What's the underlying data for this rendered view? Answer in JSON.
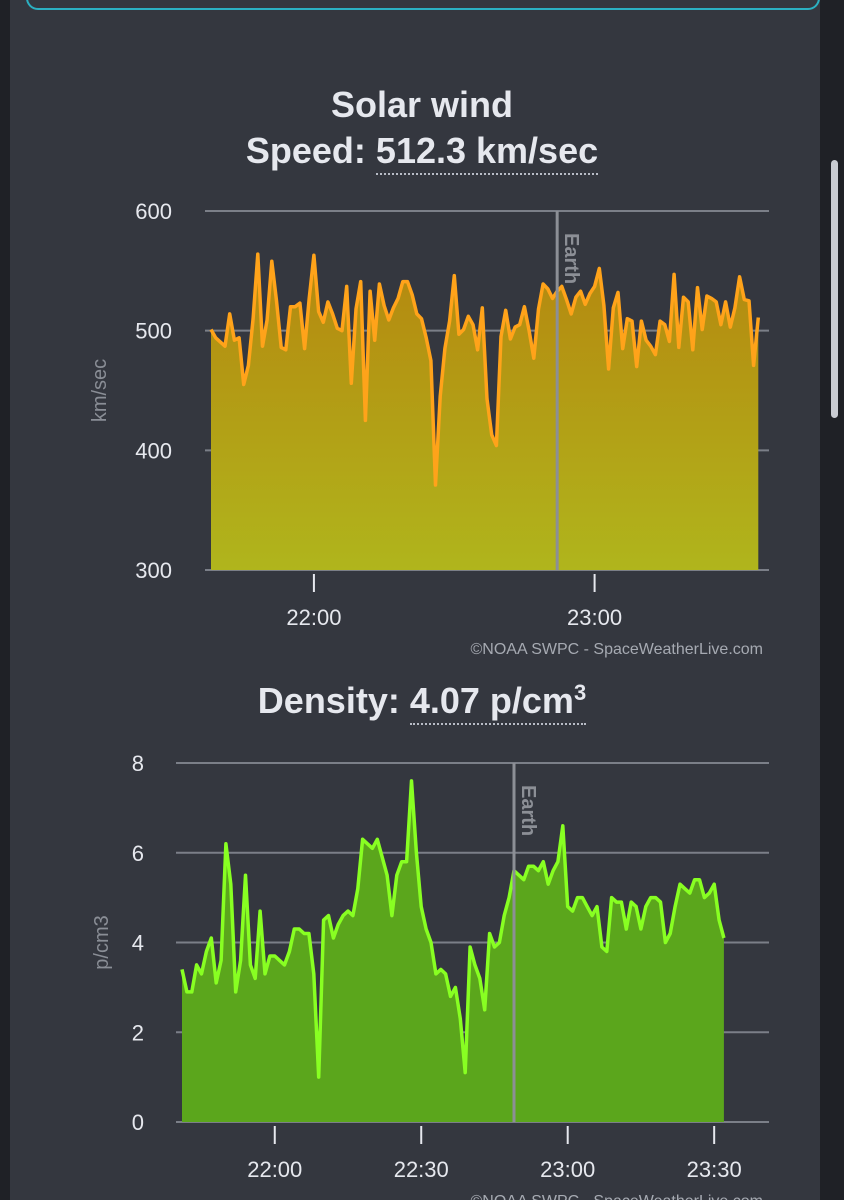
{
  "speed_chart": {
    "title_line1": "Solar wind",
    "value_label": "Speed:",
    "value": "512.3 km/sec",
    "credit": "©NOAA SWPC - SpaceWeatherLive.com",
    "earth_label": "Earth",
    "line_color": "#ffa31a",
    "fill_top": "#b5870f",
    "fill_bottom": "#b0b51c"
  },
  "density_chart": {
    "value_label": "Density:",
    "value": "4.07 p/cm",
    "value_sup": "3",
    "credit": "©NOAA SWPC - SpaceWeatherLive.com",
    "earth_label": "Earth",
    "line_color": "#88ff22",
    "fill_color": "#5ba61c"
  },
  "chart_data": [
    {
      "type": "area",
      "ylabel": "km/sec",
      "ylim": [
        300,
        600
      ],
      "yticks": [
        300,
        400,
        500,
        600
      ],
      "xticks": [
        {
          "label": "22:00",
          "t": 0
        },
        {
          "label": "23:00",
          "t": 60
        }
      ],
      "xlim": [
        -22,
        96
      ],
      "earth_marker_t": 52,
      "series": [
        {
          "values": [
            [
              -22,
              501
            ],
            [
              -21,
              494
            ],
            [
              -19,
              487
            ],
            [
              -18,
              514
            ],
            [
              -17,
              492
            ],
            [
              -16,
              494
            ],
            [
              -15,
              455
            ],
            [
              -14,
              471
            ],
            [
              -13,
              510
            ],
            [
              -12,
              564
            ],
            [
              -11,
              487
            ],
            [
              -10,
              509
            ],
            [
              -9,
              558
            ],
            [
              -8,
              525
            ],
            [
              -7,
              486
            ],
            [
              -6,
              484
            ],
            [
              -5,
              520
            ],
            [
              -4,
              520
            ],
            [
              -3,
              523
            ],
            [
              -2,
              485
            ],
            [
              -1,
              527
            ],
            [
              0,
              563
            ],
            [
              1,
              516
            ],
            [
              2,
              507
            ],
            [
              3,
              524
            ],
            [
              4,
              514
            ],
            [
              5,
              502
            ],
            [
              6,
              500
            ],
            [
              7,
              537
            ],
            [
              8,
              456
            ],
            [
              9,
              518
            ],
            [
              10,
              541
            ],
            [
              11,
              425
            ],
            [
              12,
              533
            ],
            [
              13,
              492
            ],
            [
              14,
              539
            ],
            [
              15,
              521
            ],
            [
              16,
              509
            ],
            [
              17,
              519
            ],
            [
              18,
              527
            ],
            [
              19,
              541
            ],
            [
              20,
              541
            ],
            [
              21,
              530
            ],
            [
              22,
              514
            ],
            [
              23,
              510
            ],
            [
              24,
              494
            ],
            [
              25,
              475
            ],
            [
              26,
              371
            ],
            [
              27,
              445
            ],
            [
              28,
              485
            ],
            [
              29,
              508
            ],
            [
              30,
              546
            ],
            [
              31,
              497
            ],
            [
              32,
              501
            ],
            [
              33,
              512
            ],
            [
              34,
              505
            ],
            [
              35,
              484
            ],
            [
              36,
              519
            ],
            [
              37,
              443
            ],
            [
              38,
              413
            ],
            [
              39,
              404
            ],
            [
              40,
              495
            ],
            [
              41,
              517
            ],
            [
              42,
              493
            ],
            [
              43,
              503
            ],
            [
              44,
              505
            ],
            [
              45,
              520
            ],
            [
              46,
              500
            ],
            [
              47,
              477
            ],
            [
              48,
              518
            ],
            [
              49,
              539
            ],
            [
              50,
              535
            ],
            [
              51,
              527
            ],
            [
              52,
              533
            ],
            [
              53,
              537
            ],
            [
              54,
              526
            ],
            [
              55,
              514
            ],
            [
              56,
              528
            ],
            [
              57,
              533
            ],
            [
              58,
              522
            ],
            [
              59,
              531
            ],
            [
              60,
              537
            ],
            [
              61,
              552
            ],
            [
              62,
              521
            ],
            [
              63,
              468
            ],
            [
              64,
              519
            ],
            [
              65,
              532
            ],
            [
              66,
              485
            ],
            [
              67,
              510
            ],
            [
              68,
              508
            ],
            [
              69,
              470
            ],
            [
              70,
              508
            ],
            [
              71,
              492
            ],
            [
              72,
              487
            ],
            [
              73,
              480
            ],
            [
              74,
              508
            ],
            [
              75,
              505
            ],
            [
              76,
              491
            ],
            [
              77,
              547
            ],
            [
              78,
              486
            ],
            [
              79,
              528
            ],
            [
              80,
              524
            ],
            [
              81,
              484
            ],
            [
              82,
              536
            ],
            [
              83,
              501
            ],
            [
              84,
              529
            ],
            [
              85,
              527
            ],
            [
              86,
              524
            ],
            [
              87,
              505
            ],
            [
              88,
              524
            ],
            [
              89,
              503
            ],
            [
              90,
              519
            ],
            [
              91,
              545
            ],
            [
              92,
              526
            ],
            [
              93,
              525
            ],
            [
              94,
              471
            ],
            [
              95,
              511
            ]
          ]
        }
      ]
    },
    {
      "type": "area",
      "ylabel": "p/cm3",
      "ylim": [
        0,
        8
      ],
      "yticks": [
        0,
        2,
        4,
        6,
        8
      ],
      "xticks": [
        {
          "label": "22:00",
          "t": 0
        },
        {
          "label": "22:30",
          "t": 30
        },
        {
          "label": "23:00",
          "t": 60
        },
        {
          "label": "23:30",
          "t": 90
        }
      ],
      "xlim": [
        -19,
        100
      ],
      "earth_marker_t": 49,
      "series": [
        {
          "values": [
            [
              -19,
              3.4
            ],
            [
              -18,
              2.9
            ],
            [
              -17,
              2.9
            ],
            [
              -16,
              3.5
            ],
            [
              -15,
              3.3
            ],
            [
              -14,
              3.8
            ],
            [
              -13,
              4.1
            ],
            [
              -12,
              3.1
            ],
            [
              -11,
              3.6
            ],
            [
              -10,
              6.2
            ],
            [
              -9,
              5.3
            ],
            [
              -8,
              2.9
            ],
            [
              -7,
              3.6
            ],
            [
              -6,
              5.5
            ],
            [
              -5,
              3.5
            ],
            [
              -4,
              3.2
            ],
            [
              -3,
              4.7
            ],
            [
              -2,
              3.3
            ],
            [
              -1,
              3.7
            ],
            [
              0,
              3.7
            ],
            [
              1,
              3.6
            ],
            [
              2,
              3.5
            ],
            [
              3,
              3.8
            ],
            [
              4,
              4.3
            ],
            [
              5,
              4.3
            ],
            [
              6,
              4.2
            ],
            [
              7,
              4.2
            ],
            [
              8,
              3.3
            ],
            [
              9,
              1.0
            ],
            [
              10,
              4.5
            ],
            [
              11,
              4.6
            ],
            [
              12,
              4.1
            ],
            [
              13,
              4.4
            ],
            [
              14,
              4.6
            ],
            [
              15,
              4.7
            ],
            [
              16,
              4.6
            ],
            [
              17,
              5.2
            ],
            [
              18,
              6.3
            ],
            [
              19,
              6.2
            ],
            [
              20,
              6.1
            ],
            [
              21,
              6.3
            ],
            [
              22,
              5.9
            ],
            [
              23,
              5.5
            ],
            [
              24,
              4.6
            ],
            [
              25,
              5.5
            ],
            [
              26,
              5.8
            ],
            [
              27,
              5.8
            ],
            [
              28,
              7.6
            ],
            [
              29,
              6.0
            ],
            [
              30,
              4.8
            ],
            [
              31,
              4.3
            ],
            [
              32,
              4.0
            ],
            [
              33,
              3.3
            ],
            [
              34,
              3.4
            ],
            [
              35,
              3.3
            ],
            [
              36,
              2.8
            ],
            [
              37,
              3.0
            ],
            [
              38,
              2.3
            ],
            [
              39,
              1.1
            ],
            [
              40,
              3.9
            ],
            [
              41,
              3.5
            ],
            [
              42,
              3.2
            ],
            [
              43,
              2.5
            ],
            [
              44,
              4.2
            ],
            [
              45,
              3.9
            ],
            [
              46,
              4.0
            ],
            [
              47,
              4.6
            ],
            [
              48,
              5.0
            ],
            [
              49,
              5.6
            ],
            [
              50,
              5.5
            ],
            [
              51,
              5.4
            ],
            [
              52,
              5.7
            ],
            [
              53,
              5.7
            ],
            [
              54,
              5.6
            ],
            [
              55,
              5.8
            ],
            [
              56,
              5.3
            ],
            [
              57,
              5.6
            ],
            [
              58,
              5.8
            ],
            [
              59,
              6.6
            ],
            [
              60,
              4.8
            ],
            [
              61,
              4.7
            ],
            [
              62,
              5.0
            ],
            [
              63,
              5.0
            ],
            [
              64,
              4.8
            ],
            [
              65,
              4.6
            ],
            [
              66,
              4.8
            ],
            [
              67,
              3.9
            ],
            [
              68,
              3.8
            ],
            [
              69,
              5.0
            ],
            [
              70,
              4.9
            ],
            [
              71,
              4.9
            ],
            [
              72,
              4.3
            ],
            [
              73,
              4.9
            ],
            [
              74,
              4.8
            ],
            [
              75,
              4.3
            ],
            [
              76,
              4.8
            ],
            [
              77,
              5.0
            ],
            [
              78,
              5.0
            ],
            [
              79,
              4.9
            ],
            [
              80,
              4.0
            ],
            [
              81,
              4.2
            ],
            [
              82,
              4.8
            ],
            [
              83,
              5.3
            ],
            [
              84,
              5.2
            ],
            [
              85,
              5.1
            ],
            [
              86,
              5.4
            ],
            [
              87,
              5.4
            ],
            [
              88,
              5.0
            ],
            [
              89,
              5.1
            ],
            [
              90,
              5.3
            ],
            [
              91,
              4.5
            ],
            [
              92,
              4.1
            ]
          ]
        }
      ]
    }
  ]
}
